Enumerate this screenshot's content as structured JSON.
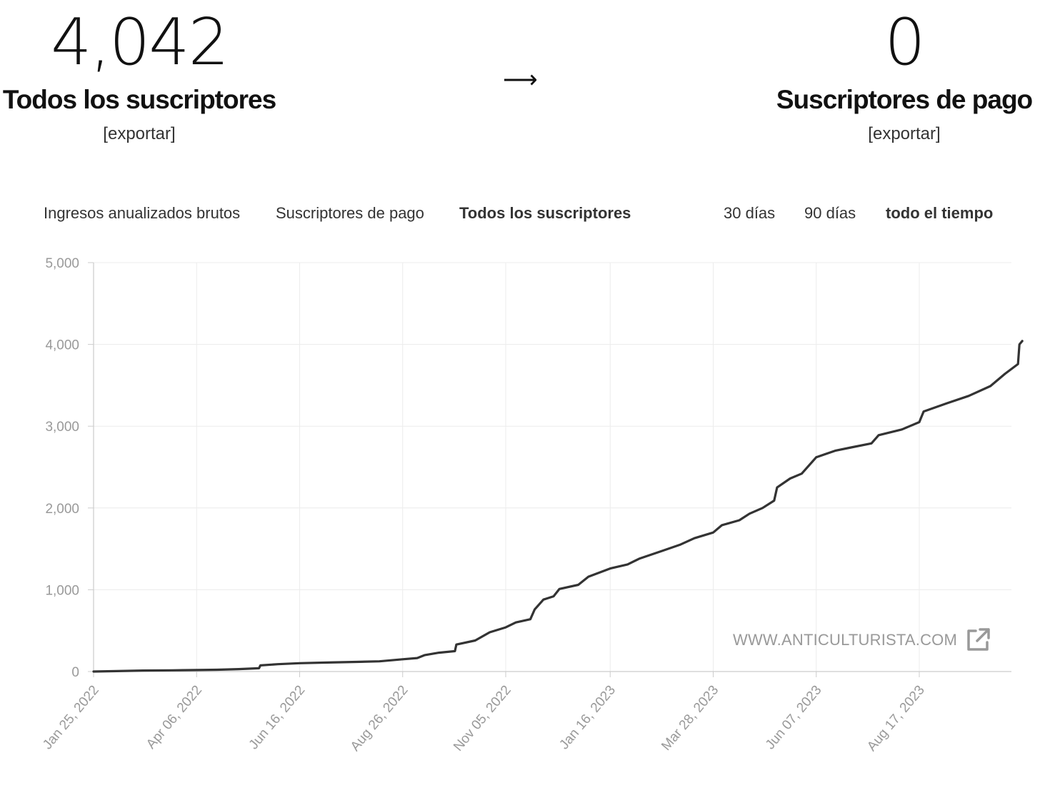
{
  "stats": {
    "all": {
      "value": "4,042",
      "label": "Todos los suscriptores",
      "export": "[exportar]"
    },
    "arrow": "⟶",
    "paid": {
      "value": "0",
      "label": "Suscriptores de pago",
      "export": "[exportar]"
    }
  },
  "metric_tabs": [
    {
      "label": "Ingresos anualizados brutos",
      "active": false
    },
    {
      "label": "Suscriptores de pago",
      "active": false
    },
    {
      "label": "Todos los suscriptores",
      "active": true
    }
  ],
  "range_tabs": [
    {
      "label": "30 días",
      "active": false
    },
    {
      "label": "90 días",
      "active": false
    },
    {
      "label": "todo el tiempo",
      "active": true
    }
  ],
  "watermark": "WWW.ANTICULTURISTA.COM",
  "chart_data": {
    "type": "line",
    "title": "",
    "xlabel": "",
    "ylabel": "",
    "ylim": [
      0,
      5000
    ],
    "y_ticks": [
      0,
      1000,
      2000,
      3000,
      4000,
      5000
    ],
    "y_tick_labels": [
      "0",
      "1,000",
      "2,000",
      "3,000",
      "4,000",
      "5,000"
    ],
    "x_ticks": [
      "2022-01-25",
      "2022-04-06",
      "2022-06-16",
      "2022-08-26",
      "2022-11-05",
      "2023-01-16",
      "2023-03-28",
      "2023-06-07",
      "2023-08-17"
    ],
    "x_tick_labels": [
      "Jan 25, 2022",
      "Apr 06, 2022",
      "Jun 16, 2022",
      "Aug 26, 2022",
      "Nov 05, 2022",
      "Jan 16, 2023",
      "Mar 28, 2023",
      "Jun 07, 2023",
      "Aug 17, 2023"
    ],
    "xlim": [
      "2022-01-25",
      "2023-10-27"
    ],
    "grid": true,
    "line_color": "#333333",
    "series": [
      {
        "points": [
          [
            "2022-01-25",
            0
          ],
          [
            "2022-02-10",
            5
          ],
          [
            "2022-02-28",
            12
          ],
          [
            "2022-03-20",
            15
          ],
          [
            "2022-04-06",
            18
          ],
          [
            "2022-04-20",
            22
          ],
          [
            "2022-05-05",
            30
          ],
          [
            "2022-05-19",
            40
          ],
          [
            "2022-05-20",
            75
          ],
          [
            "2022-06-01",
            90
          ],
          [
            "2022-06-16",
            102
          ],
          [
            "2022-07-05",
            110
          ],
          [
            "2022-07-25",
            118
          ],
          [
            "2022-08-10",
            125
          ],
          [
            "2022-08-26",
            150
          ],
          [
            "2022-09-05",
            165
          ],
          [
            "2022-09-10",
            200
          ],
          [
            "2022-09-20",
            230
          ],
          [
            "2022-10-01",
            250
          ],
          [
            "2022-10-02",
            330
          ],
          [
            "2022-10-15",
            380
          ],
          [
            "2022-10-25",
            480
          ],
          [
            "2022-11-05",
            540
          ],
          [
            "2022-11-12",
            600
          ],
          [
            "2022-11-22",
            640
          ],
          [
            "2022-11-25",
            760
          ],
          [
            "2022-12-01",
            880
          ],
          [
            "2022-12-08",
            920
          ],
          [
            "2022-12-12",
            1010
          ],
          [
            "2022-12-25",
            1060
          ],
          [
            "2023-01-01",
            1160
          ],
          [
            "2023-01-16",
            1260
          ],
          [
            "2023-01-28",
            1310
          ],
          [
            "2023-02-05",
            1380
          ],
          [
            "2023-02-20",
            1470
          ],
          [
            "2023-03-05",
            1550
          ],
          [
            "2023-03-15",
            1630
          ],
          [
            "2023-03-28",
            1700
          ],
          [
            "2023-04-03",
            1790
          ],
          [
            "2023-04-15",
            1850
          ],
          [
            "2023-04-22",
            1930
          ],
          [
            "2023-05-01",
            2000
          ],
          [
            "2023-05-09",
            2090
          ],
          [
            "2023-05-11",
            2250
          ],
          [
            "2023-05-20",
            2360
          ],
          [
            "2023-05-28",
            2420
          ],
          [
            "2023-06-07",
            2620
          ],
          [
            "2023-06-20",
            2700
          ],
          [
            "2023-07-01",
            2740
          ],
          [
            "2023-07-15",
            2790
          ],
          [
            "2023-07-20",
            2890
          ],
          [
            "2023-08-05",
            2960
          ],
          [
            "2023-08-17",
            3050
          ],
          [
            "2023-08-20",
            3180
          ],
          [
            "2023-09-05",
            3280
          ],
          [
            "2023-09-20",
            3370
          ],
          [
            "2023-10-05",
            3490
          ],
          [
            "2023-10-15",
            3640
          ],
          [
            "2023-10-24",
            3760
          ],
          [
            "2023-10-25",
            4000
          ],
          [
            "2023-10-27",
            4042
          ]
        ]
      }
    ]
  }
}
